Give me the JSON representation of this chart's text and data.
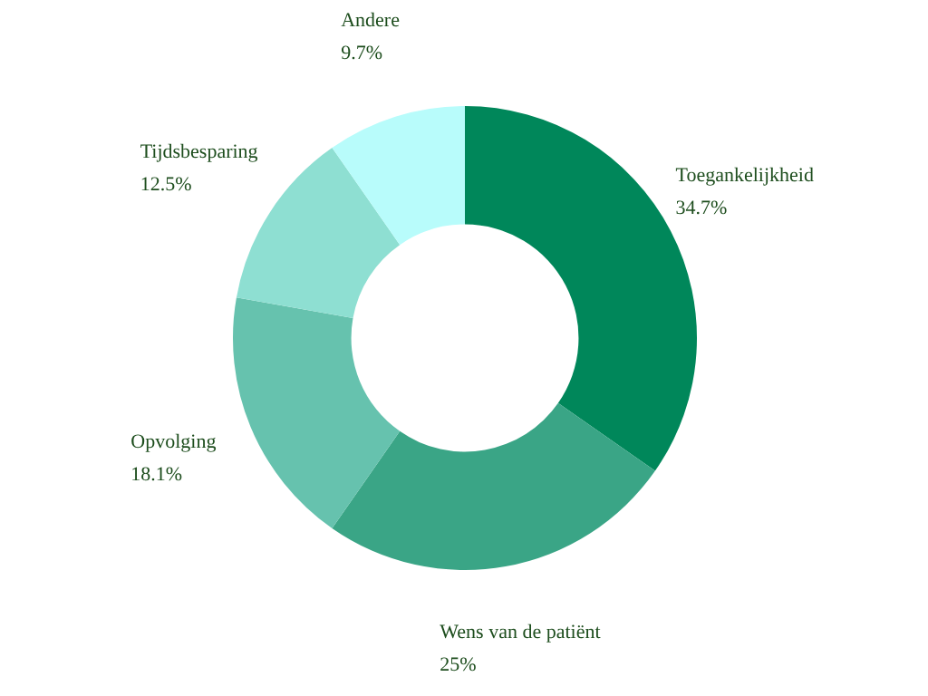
{
  "chart_data": {
    "type": "donut",
    "categories": [
      "Toegankelijkheid",
      "Wens van de patiënt",
      "Opvolging",
      "Tijdsbesparing",
      "Andere"
    ],
    "values": [
      34.7,
      25,
      18.1,
      12.5,
      9.7
    ],
    "colors": [
      "#00875a",
      "#3aa586",
      "#66c2ae",
      "#8edfd2",
      "#b8fcfb"
    ],
    "value_labels": [
      "34.7%",
      "25%",
      "18.1%",
      "12.5%",
      "9.7%"
    ]
  }
}
